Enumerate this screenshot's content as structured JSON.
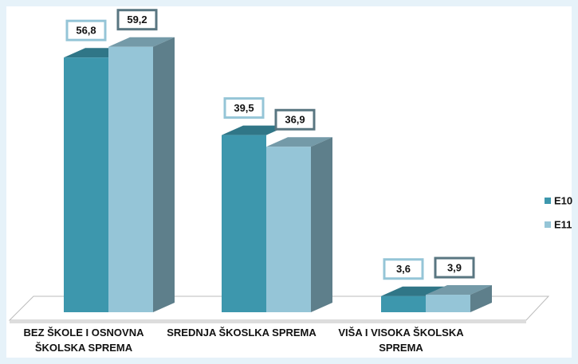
{
  "chart_data": {
    "type": "bar3d",
    "categories": [
      "BEZ ŠKOLE I OSNOVNA ŠKOLSKA SPREMA",
      "SREDNJA ŠKOSLKA SPREMA",
      "VIŠA I VISOKA ŠKOLSKA SPREMA"
    ],
    "series": [
      {
        "name": "E10",
        "color": "#3d97ad",
        "values": [
          56.8,
          39.5,
          3.6
        ],
        "value_labels": [
          "56,8",
          "39,5",
          "3,6"
        ]
      },
      {
        "name": "E11",
        "color": "#95c5d7",
        "values": [
          59.2,
          36.9,
          3.9
        ],
        "value_labels": [
          "59,2",
          "36,9",
          "3,9"
        ]
      }
    ],
    "legend": "right"
  }
}
